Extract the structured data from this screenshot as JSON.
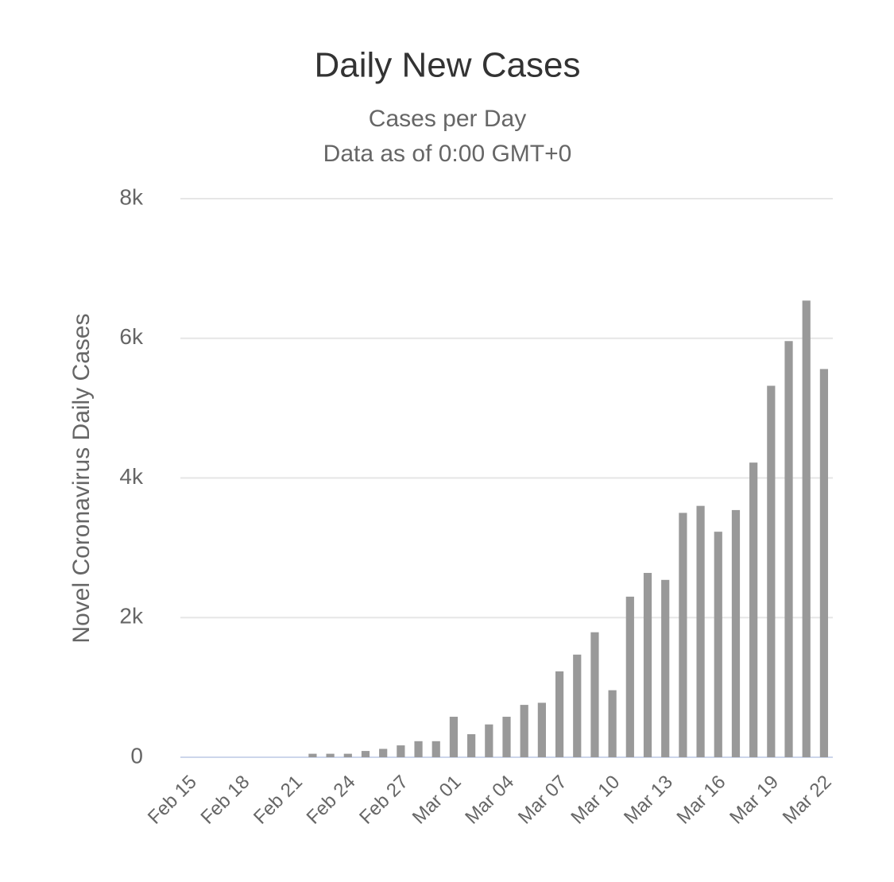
{
  "chart_data": {
    "type": "bar",
    "title": "Daily New Cases",
    "subtitle": [
      "Cases per Day",
      "Data as of 0:00 GMT+0"
    ],
    "y_label": "Novel Coronavirus Daily Cases",
    "categories": [
      "Feb 15",
      null,
      null,
      "Feb 18",
      null,
      null,
      "Feb 21",
      null,
      null,
      "Feb 24",
      null,
      null,
      "Feb 27",
      null,
      null,
      "Mar 01",
      null,
      null,
      "Mar 04",
      null,
      null,
      "Mar 07",
      null,
      null,
      "Mar 10",
      null,
      null,
      "Mar 13",
      null,
      null,
      "Mar 16",
      null,
      null,
      "Mar 19",
      null,
      null,
      "Mar 22"
    ],
    "values": [
      0,
      0,
      0,
      0,
      0,
      0,
      0,
      50,
      50,
      50,
      90,
      120,
      170,
      230,
      230,
      580,
      330,
      470,
      580,
      750,
      780,
      1230,
      1470,
      1790,
      960,
      2300,
      2640,
      2540,
      3500,
      3600,
      3230,
      3540,
      4220,
      5320,
      5960,
      6540,
      5560
    ],
    "color": "#999999",
    "ylim": [
      0,
      8000
    ],
    "yticks": [
      0,
      {
        "value": 2000,
        "label": "2k"
      },
      {
        "value": 4000,
        "label": "4k"
      },
      {
        "value": 6000,
        "label": "6k"
      },
      {
        "value": 8000,
        "label": "8k"
      }
    ],
    "grid": true
  }
}
